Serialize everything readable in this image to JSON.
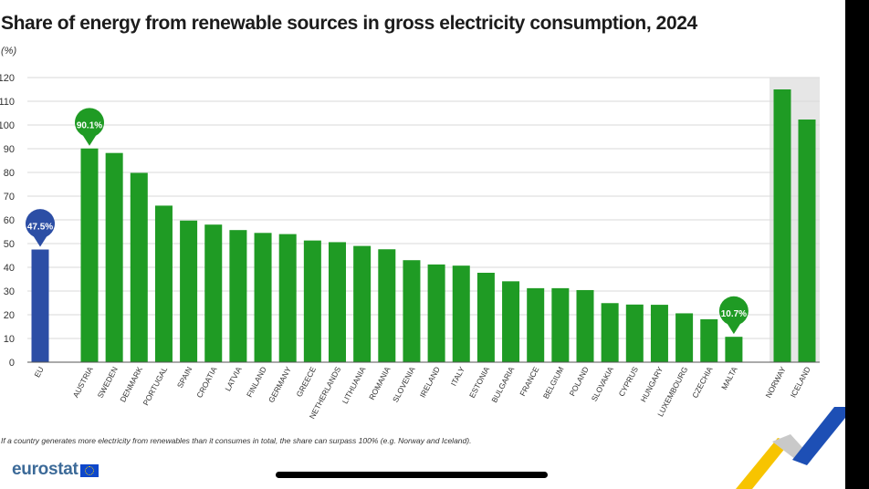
{
  "chart_data": {
    "type": "bar",
    "title": "Share of energy from renewable sources in gross electricity consumption, 2024",
    "unit_label": "(%)",
    "ylim": [
      0,
      120
    ],
    "yticks": [
      0,
      10,
      20,
      30,
      40,
      50,
      60,
      70,
      80,
      90,
      100,
      110,
      120
    ],
    "grid": true,
    "categories": [
      "EU",
      "AUSTRIA",
      "SWEDEN",
      "DENMARK",
      "PORTUGAL",
      "SPAIN",
      "CROATIA",
      "LATVIA",
      "FINLAND",
      "GERMANY",
      "GREECE",
      "NETHERLANDS",
      "LITHUANIA",
      "ROMANIA",
      "SLOVENIA",
      "IRELAND",
      "ITALY",
      "ESTONIA",
      "BULGARIA",
      "FRANCE",
      "BELGIUM",
      "POLAND",
      "SLOVAKIA",
      "CYPRUS",
      "HUNGARY",
      "LUXEMBOURG",
      "CZECHIA",
      "MALTA",
      "NORWAY",
      "ICELAND"
    ],
    "values": [
      47.5,
      90.1,
      88.2,
      79.8,
      66.0,
      59.7,
      58.0,
      55.7,
      54.5,
      54.0,
      51.3,
      50.6,
      49.0,
      47.6,
      43.0,
      41.2,
      40.7,
      37.7,
      34.1,
      31.2,
      31.2,
      30.4,
      24.9,
      24.3,
      24.2,
      20.6,
      18.1,
      10.7,
      115.0,
      102.3
    ],
    "groups": [
      "eu",
      "member",
      "member",
      "member",
      "member",
      "member",
      "member",
      "member",
      "member",
      "member",
      "member",
      "member",
      "member",
      "member",
      "member",
      "member",
      "member",
      "member",
      "member",
      "member",
      "member",
      "member",
      "member",
      "member",
      "member",
      "member",
      "member",
      "member",
      "efta",
      "efta"
    ],
    "callouts": [
      {
        "category": "EU",
        "label": "47.5%",
        "color": "#2c4ea5"
      },
      {
        "category": "AUSTRIA",
        "label": "90.1%",
        "color": "#1f9b24"
      },
      {
        "category": "MALTA",
        "label": "10.7%",
        "color": "#1f9b24"
      }
    ],
    "colors": {
      "eu": "#2c4ea5",
      "member": "#1f9b24",
      "efta": "#1f9b24",
      "efta_background": "#e6e6e6",
      "grid": "#d9d9d9"
    },
    "footnote": "If a country generates more electricity from renewables than it consumes in total, the share can surpass 100% (e.g. Norway and Iceland)."
  },
  "branding": {
    "logo_text": "eurostat"
  }
}
